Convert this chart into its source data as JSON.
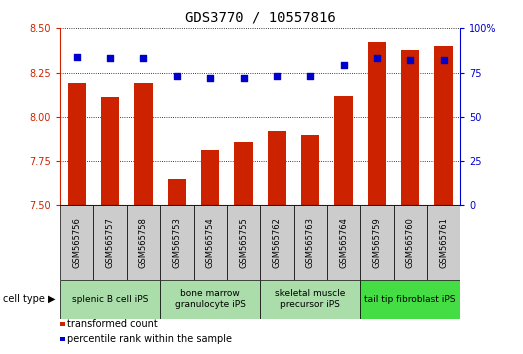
{
  "title": "GDS3770 / 10557816",
  "samples": [
    "GSM565756",
    "GSM565757",
    "GSM565758",
    "GSM565753",
    "GSM565754",
    "GSM565755",
    "GSM565762",
    "GSM565763",
    "GSM565764",
    "GSM565759",
    "GSM565760",
    "GSM565761"
  ],
  "transformed_count": [
    8.19,
    8.11,
    8.19,
    7.65,
    7.81,
    7.86,
    7.92,
    7.9,
    8.12,
    8.42,
    8.38,
    8.4
  ],
  "percentile_rank": [
    84,
    83,
    83,
    73,
    72,
    72,
    73,
    73,
    79,
    83,
    82,
    82
  ],
  "ylim_left": [
    7.5,
    8.5
  ],
  "ylim_right": [
    0,
    100
  ],
  "yticks_left": [
    7.5,
    7.75,
    8.0,
    8.25,
    8.5
  ],
  "yticks_right": [
    0,
    25,
    50,
    75,
    100
  ],
  "bar_color": "#cc2200",
  "dot_color": "#0000cc",
  "bar_width": 0.55,
  "sample_box_color": "#cccccc",
  "group_colors": [
    "#aaddaa",
    "#aaddaa",
    "#aaddaa",
    "#44dd44"
  ],
  "group_labels": [
    "splenic B cell iPS",
    "bone marrow\ngranulocyte iPS",
    "skeletal muscle\nprecursor iPS",
    "tail tip fibroblast iPS"
  ],
  "group_boundaries": [
    0,
    3,
    6,
    9,
    12
  ],
  "title_fontsize": 10,
  "tick_fontsize": 7,
  "sample_fontsize": 6,
  "group_fontsize": 6.5,
  "legend_fontsize": 7,
  "celltype_fontsize": 7
}
